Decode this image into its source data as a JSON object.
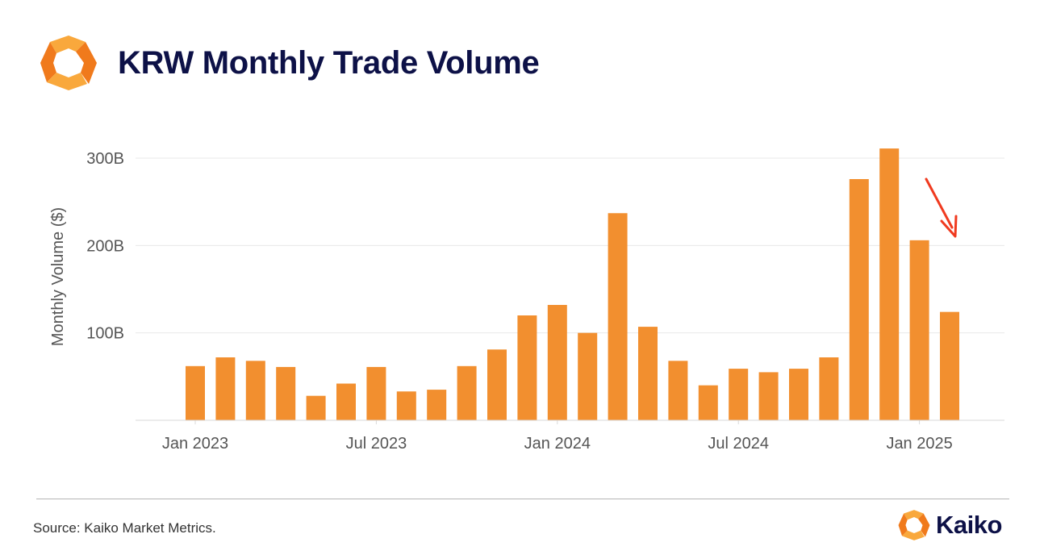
{
  "header": {
    "title": "KRW Monthly Trade Volume"
  },
  "footer": {
    "source": "Source: Kaiko Market Metrics.",
    "brand_name": "Kaiko"
  },
  "icons": {
    "header_logo": "kaiko-logo-icon",
    "footer_logo": "kaiko-logo-icon"
  },
  "colors": {
    "bar": "#f28f2f",
    "title": "#0d1147",
    "arrow": "#f03a1f",
    "gridline": "#e8e8e8",
    "axis_text": "#555555",
    "logo_light": "#f9a83c",
    "logo_dark": "#f07a1c"
  },
  "chart_data": {
    "type": "bar",
    "ylabel": "Monthly Volume ($)",
    "ylim": [
      0,
      300
    ],
    "yticks": [
      100,
      200,
      300
    ],
    "ytick_labels": [
      "100B",
      "200B",
      "300B"
    ],
    "xtick_labels": [
      "Jan 2023",
      "Jul 2023",
      "Jan 2024",
      "Jul 2024",
      "Jan 2025"
    ],
    "xtick_categories": [
      "Jan 2023",
      "Jul 2023",
      "Jan 2024",
      "Jul 2024",
      "Jan 2025"
    ],
    "grid": true,
    "categories": [
      "Jan 2023",
      "Feb 2023",
      "Mar 2023",
      "Apr 2023",
      "May 2023",
      "Jun 2023",
      "Jul 2023",
      "Aug 2023",
      "Sep 2023",
      "Oct 2023",
      "Nov 2023",
      "Dec 2023",
      "Jan 2024",
      "Feb 2024",
      "Mar 2024",
      "Apr 2024",
      "May 2024",
      "Jun 2024",
      "Jul 2024",
      "Aug 2024",
      "Sep 2024",
      "Oct 2024",
      "Nov 2024",
      "Dec 2024",
      "Jan 2025",
      "Feb 2025"
    ],
    "values": [
      62,
      72,
      68,
      61,
      28,
      42,
      61,
      33,
      35,
      62,
      81,
      120,
      132,
      100,
      237,
      107,
      68,
      40,
      59,
      55,
      59,
      72,
      276,
      311,
      206,
      124
    ],
    "annotations": [
      {
        "type": "arrow",
        "direction": "down",
        "near_category": "Feb 2025"
      }
    ]
  }
}
